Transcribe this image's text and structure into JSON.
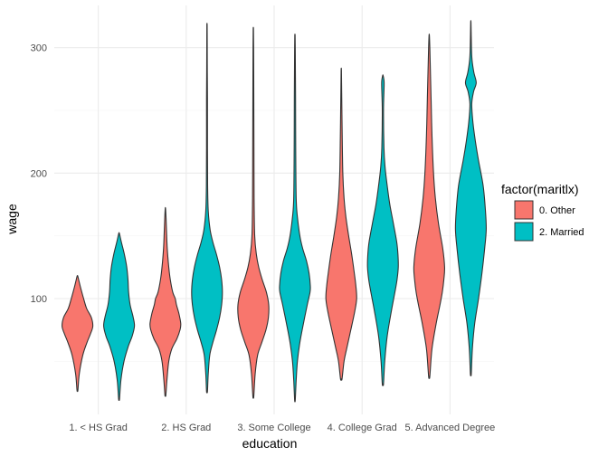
{
  "chart_data": {
    "type": "violin",
    "xlabel": "education",
    "ylabel": "wage",
    "categories": [
      "1. < HS Grad",
      "2. HS Grad",
      "3. Some College",
      "4. College Grad",
      "5. Advanced Degree"
    ],
    "yticks": [
      100,
      200,
      300
    ],
    "ylim": [
      10,
      330
    ],
    "grid": true,
    "legend": {
      "title": "factor(maritlx)",
      "position": "right",
      "entries": [
        "0. Other",
        "2. Married"
      ]
    },
    "series": [
      {
        "name": "0. Other",
        "color": "#F8766D",
        "violins": [
          {
            "category": "1. < HS Grad",
            "min": 27,
            "max": 118,
            "profile": [
              [
                27,
                0.03
              ],
              [
                40,
                0.12
              ],
              [
                55,
                0.35
              ],
              [
                65,
                0.62
              ],
              [
                72,
                0.85
              ],
              [
                78,
                1.0
              ],
              [
                85,
                0.9
              ],
              [
                92,
                0.6
              ],
              [
                100,
                0.4
              ],
              [
                108,
                0.22
              ],
              [
                115,
                0.08
              ],
              [
                118,
                0.02
              ]
            ]
          },
          {
            "category": "2. HS Grad",
            "min": 23,
            "max": 172,
            "profile": [
              [
                23,
                0.03
              ],
              [
                35,
                0.1
              ],
              [
                50,
                0.22
              ],
              [
                60,
                0.42
              ],
              [
                68,
                0.75
              ],
              [
                75,
                0.95
              ],
              [
                80,
                1.0
              ],
              [
                88,
                0.88
              ],
              [
                95,
                0.72
              ],
              [
                100,
                0.64
              ],
              [
                105,
                0.48
              ],
              [
                115,
                0.32
              ],
              [
                125,
                0.22
              ],
              [
                140,
                0.12
              ],
              [
                155,
                0.07
              ],
              [
                165,
                0.04
              ],
              [
                172,
                0.01
              ]
            ]
          },
          {
            "category": "3. Some College",
            "min": 22,
            "max": 315,
            "profile": [
              [
                22,
                0.03
              ],
              [
                40,
                0.12
              ],
              [
                55,
                0.28
              ],
              [
                65,
                0.55
              ],
              [
                75,
                0.82
              ],
              [
                85,
                0.98
              ],
              [
                95,
                1.0
              ],
              [
                105,
                0.85
              ],
              [
                115,
                0.58
              ],
              [
                125,
                0.35
              ],
              [
                135,
                0.2
              ],
              [
                150,
                0.09
              ],
              [
                180,
                0.05
              ],
              [
                220,
                0.04
              ],
              [
                260,
                0.03
              ],
              [
                300,
                0.02
              ],
              [
                315,
                0.01
              ]
            ]
          },
          {
            "category": "4. College Grad",
            "min": 36,
            "max": 282,
            "profile": [
              [
                36,
                0.05
              ],
              [
                50,
                0.18
              ],
              [
                60,
                0.35
              ],
              [
                75,
                0.62
              ],
              [
                90,
                0.88
              ],
              [
                100,
                1.0
              ],
              [
                110,
                0.95
              ],
              [
                120,
                0.85
              ],
              [
                135,
                0.68
              ],
              [
                150,
                0.48
              ],
              [
                165,
                0.3
              ],
              [
                180,
                0.18
              ],
              [
                200,
                0.1
              ],
              [
                230,
                0.06
              ],
              [
                260,
                0.03
              ],
              [
                282,
                0.01
              ]
            ]
          },
          {
            "category": "5. Advanced Degree",
            "min": 38,
            "max": 310,
            "profile": [
              [
                38,
                0.04
              ],
              [
                60,
                0.18
              ],
              [
                80,
                0.45
              ],
              [
                95,
                0.7
              ],
              [
                105,
                0.85
              ],
              [
                115,
                0.95
              ],
              [
                125,
                1.0
              ],
              [
                140,
                0.88
              ],
              [
                160,
                0.6
              ],
              [
                180,
                0.4
              ],
              [
                200,
                0.28
              ],
              [
                230,
                0.18
              ],
              [
                260,
                0.12
              ],
              [
                280,
                0.08
              ],
              [
                300,
                0.04
              ],
              [
                310,
                0.01
              ]
            ]
          }
        ]
      },
      {
        "name": "2. Married",
        "color": "#00BFC4",
        "violins": [
          {
            "category": "1. < HS Grad",
            "min": 20,
            "max": 152,
            "profile": [
              [
                20,
                0.03
              ],
              [
                35,
                0.12
              ],
              [
                50,
                0.32
              ],
              [
                62,
                0.6
              ],
              [
                70,
                0.85
              ],
              [
                78,
                1.0
              ],
              [
                85,
                0.92
              ],
              [
                95,
                0.72
              ],
              [
                105,
                0.62
              ],
              [
                115,
                0.58
              ],
              [
                125,
                0.5
              ],
              [
                135,
                0.35
              ],
              [
                145,
                0.15
              ],
              [
                152,
                0.02
              ]
            ]
          },
          {
            "category": "2. HS Grad",
            "min": 26,
            "max": 318,
            "profile": [
              [
                26,
                0.03
              ],
              [
                40,
                0.08
              ],
              [
                55,
                0.18
              ],
              [
                65,
                0.38
              ],
              [
                75,
                0.62
              ],
              [
                85,
                0.82
              ],
              [
                95,
                0.95
              ],
              [
                105,
                1.0
              ],
              [
                115,
                0.95
              ],
              [
                125,
                0.82
              ],
              [
                135,
                0.62
              ],
              [
                145,
                0.38
              ],
              [
                155,
                0.2
              ],
              [
                170,
                0.08
              ],
              [
                190,
                0.04
              ],
              [
                220,
                0.03
              ],
              [
                260,
                0.03
              ],
              [
                280,
                0.02
              ],
              [
                300,
                0.015
              ],
              [
                318,
                0.01
              ]
            ]
          },
          {
            "category": "3. Some College",
            "min": 19,
            "max": 310,
            "profile": [
              [
                19,
                0.02
              ],
              [
                35,
                0.08
              ],
              [
                50,
                0.16
              ],
              [
                65,
                0.32
              ],
              [
                80,
                0.55
              ],
              [
                95,
                0.8
              ],
              [
                105,
                0.98
              ],
              [
                110,
                1.0
              ],
              [
                120,
                0.92
              ],
              [
                130,
                0.75
              ],
              [
                140,
                0.5
              ],
              [
                150,
                0.32
              ],
              [
                165,
                0.16
              ],
              [
                180,
                0.08
              ],
              [
                220,
                0.05
              ],
              [
                260,
                0.04
              ],
              [
                280,
                0.03
              ],
              [
                300,
                0.02
              ],
              [
                310,
                0.01
              ]
            ]
          },
          {
            "category": "4. College Grad",
            "min": 32,
            "max": 278,
            "profile": [
              [
                32,
                0.04
              ],
              [
                50,
                0.12
              ],
              [
                70,
                0.28
              ],
              [
                90,
                0.55
              ],
              [
                105,
                0.78
              ],
              [
                115,
                0.92
              ],
              [
                125,
                1.0
              ],
              [
                135,
                0.98
              ],
              [
                145,
                0.9
              ],
              [
                160,
                0.68
              ],
              [
                175,
                0.45
              ],
              [
                190,
                0.28
              ],
              [
                205,
                0.14
              ],
              [
                220,
                0.07
              ],
              [
                250,
                0.04
              ],
              [
                270,
                0.08
              ],
              [
                275,
                0.06
              ],
              [
                278,
                0.01
              ]
            ]
          },
          {
            "category": "5. Advanced Degree",
            "min": 40,
            "max": 320,
            "profile": [
              [
                40,
                0.03
              ],
              [
                60,
                0.1
              ],
              [
                80,
                0.25
              ],
              [
                100,
                0.5
              ],
              [
                120,
                0.72
              ],
              [
                140,
                0.9
              ],
              [
                155,
                1.0
              ],
              [
                170,
                0.95
              ],
              [
                190,
                0.8
              ],
              [
                210,
                0.5
              ],
              [
                225,
                0.3
              ],
              [
                240,
                0.14
              ],
              [
                255,
                0.06
              ],
              [
                265,
                0.18
              ],
              [
                272,
                0.35
              ],
              [
                280,
                0.2
              ],
              [
                290,
                0.08
              ],
              [
                300,
                0.04
              ],
              [
                320,
                0.01
              ]
            ]
          }
        ]
      }
    ]
  }
}
